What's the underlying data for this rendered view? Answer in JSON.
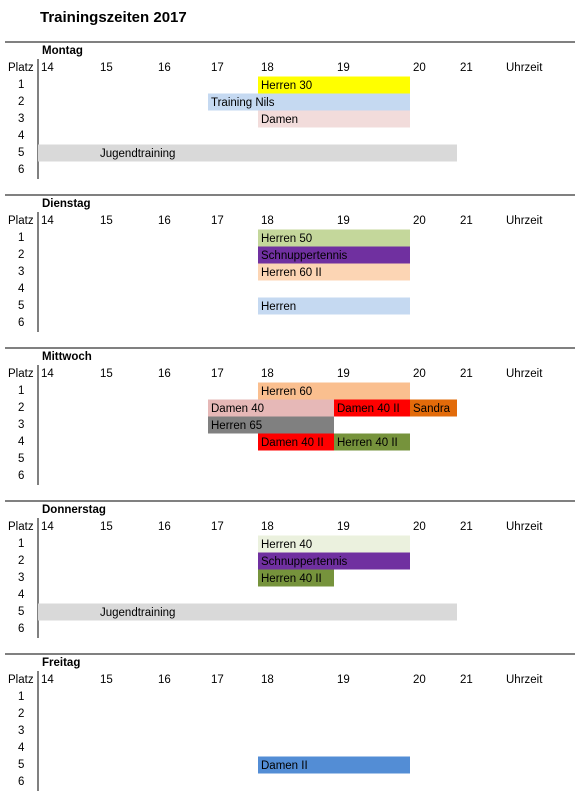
{
  "title": "Trainingszeiten 2017",
  "days": [
    {
      "name": "Montag",
      "header": {
        "court": "Platz",
        "hours": [
          14,
          15,
          16,
          17,
          18,
          19,
          20,
          21
        ],
        "unit": "Uhrzeit"
      },
      "courts": [
        1,
        2,
        3,
        4,
        5,
        6
      ],
      "bookings": [
        {
          "court": 1,
          "from": 18,
          "to": 20,
          "label": "Herren 30",
          "color": "#ffff00",
          "text_color": "#000000"
        },
        {
          "court": 2,
          "from": 17,
          "to": 20,
          "label": "Training Nils",
          "color": "#c5d9f1",
          "text_color": "#000000"
        },
        {
          "court": 3,
          "from": 18,
          "to": 20,
          "label": "Damen",
          "color": "#f2dcdb",
          "text_color": "#000000"
        },
        {
          "court": 5,
          "from": 14,
          "to": 21,
          "label": "Jugendtraining",
          "color": "#d9d9d9",
          "text_color": "#000000"
        }
      ]
    },
    {
      "name": "Dienstag",
      "header": {
        "court": "Platz",
        "hours": [
          14,
          15,
          16,
          17,
          18,
          19,
          20,
          21
        ],
        "unit": "Uhrzeit"
      },
      "courts": [
        1,
        2,
        3,
        4,
        5,
        6
      ],
      "bookings": [
        {
          "court": 1,
          "from": 18,
          "to": 20,
          "label": "Herren 50",
          "color": "#c4d79b",
          "text_color": "#000000"
        },
        {
          "court": 2,
          "from": 18,
          "to": 20,
          "label": "Schnuppertennis",
          "color": "#7030a0",
          "text_color": "#ffffff"
        },
        {
          "court": 3,
          "from": 18,
          "to": 20,
          "label": "Herren 60 II",
          "color": "#fcd5b4",
          "text_color": "#000000"
        },
        {
          "court": 5,
          "from": 18,
          "to": 20,
          "label": "Herren",
          "color": "#c5d9f1",
          "text_color": "#000000"
        }
      ]
    },
    {
      "name": "Mittwoch",
      "header": {
        "court": "Platz",
        "hours": [
          14,
          15,
          16,
          17,
          18,
          19,
          20,
          21
        ],
        "unit": "Uhrzeit"
      },
      "courts": [
        1,
        2,
        3,
        4,
        5,
        6
      ],
      "bookings": [
        {
          "court": 1,
          "from": 18,
          "to": 20,
          "label": "Herren 60",
          "color": "#fabf8f",
          "text_color": "#000000"
        },
        {
          "court": 2,
          "from": 17,
          "to": 19,
          "label": "Damen 40",
          "color": "#e6b8b7",
          "text_color": "#000000"
        },
        {
          "court": 2,
          "from": 19,
          "to": 20,
          "label": "Damen 40 II",
          "color": "#ff0000",
          "text_color": "#ffffff"
        },
        {
          "court": 2,
          "from": 20,
          "to": 21,
          "label": "Sandra",
          "color": "#e26b0a",
          "text_color": "#000000"
        },
        {
          "court": 3,
          "from": 17,
          "to": 19,
          "label": "Herren 65",
          "color": "#808080",
          "text_color": "#ffffff"
        },
        {
          "court": 4,
          "from": 18,
          "to": 19,
          "label": "Damen 40 II",
          "color": "#ff0000",
          "text_color": "#ffffff"
        },
        {
          "court": 4,
          "from": 19,
          "to": 20,
          "label": "Herren 40 II",
          "color": "#76933c",
          "text_color": "#000000"
        }
      ]
    },
    {
      "name": "Donnerstag",
      "header": {
        "court": "Platz",
        "hours": [
          14,
          15,
          16,
          17,
          18,
          19,
          20,
          21
        ],
        "unit": "Uhrzeit"
      },
      "courts": [
        1,
        2,
        3,
        4,
        5,
        6
      ],
      "bookings": [
        {
          "court": 1,
          "from": 18,
          "to": 20,
          "label": "Herren 40",
          "color": "#ebf1de",
          "text_color": "#000000"
        },
        {
          "court": 2,
          "from": 18,
          "to": 20,
          "label": "Schnuppertennis",
          "color": "#7030a0",
          "text_color": "#ffffff"
        },
        {
          "court": 3,
          "from": 18,
          "to": 19,
          "label": "Herren 40 II",
          "color": "#76933c",
          "text_color": "#000000"
        },
        {
          "court": 5,
          "from": 14,
          "to": 21,
          "label": "Jugendtraining",
          "color": "#d9d9d9",
          "text_color": "#000000"
        }
      ]
    },
    {
      "name": "Freitag",
      "header": {
        "court": "Platz",
        "hours": [
          14,
          15,
          16,
          17,
          18,
          19,
          20,
          21
        ],
        "unit": "Uhrzeit"
      },
      "courts": [
        1,
        2,
        3,
        4,
        5,
        6
      ],
      "bookings": [
        {
          "court": 5,
          "from": 18,
          "to": 20,
          "label": "Damen II",
          "color": "#538dd5",
          "text_color": "#000000"
        }
      ]
    }
  ]
}
